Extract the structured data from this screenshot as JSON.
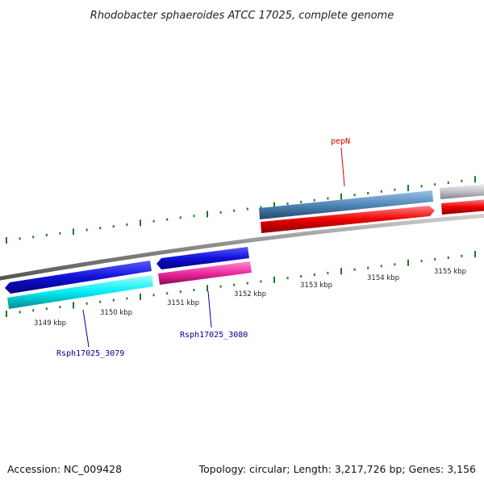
{
  "title": "Rhodobacter sphaeroides ATCC 17025, complete genome",
  "footer": {
    "accession": "Accession: NC_009428",
    "topology": "Topology: circular; Length: 3,217,726 bp; Genes: 3,156"
  },
  "colors": {
    "backbone": "#8a8a8a",
    "ticks": "#1e7a1e",
    "blue": "#1010d8",
    "cyan": "#00e8f0",
    "pink": "#ee2aa0",
    "steel": "#4f86b8",
    "red": "#ee0000",
    "grey": "#c2c2c6",
    "gene_label_blue": "#000099",
    "gene_label_red": "#cc0000"
  },
  "tick_labels": [
    "3149 kbp",
    "3150 kbp",
    "3151 kbp",
    "3152 kbp",
    "3153 kbp",
    "3154 kbp",
    "3155 kbp"
  ],
  "gene_labels": [
    {
      "name": "pepN",
      "color": "red"
    },
    {
      "name": "Rsph17025_3079",
      "color": "blue"
    },
    {
      "name": "Rsph17025_3080",
      "color": "blue"
    }
  ]
}
